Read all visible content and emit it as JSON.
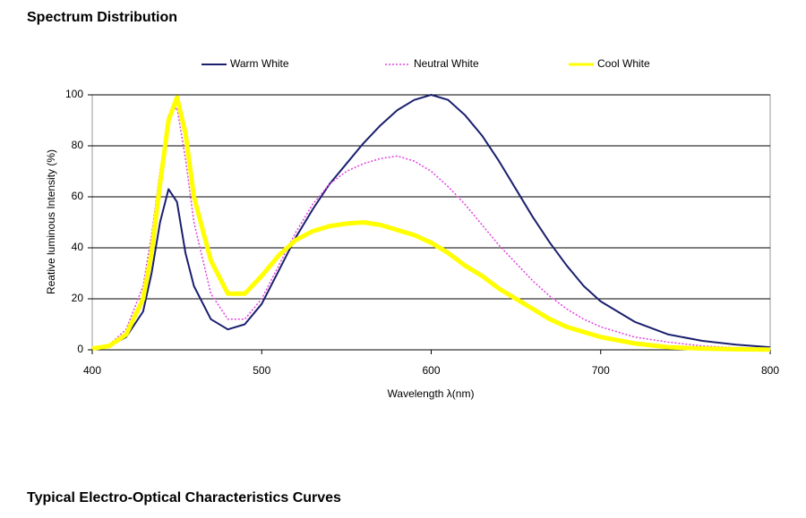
{
  "header": {
    "title": "Spectrum Distribution"
  },
  "chart_data": {
    "type": "line",
    "x_label": "Wavelength  λ(nm)",
    "y_label": "Reative luminous Intensity  (%)",
    "x": [
      400,
      410,
      420,
      430,
      435,
      440,
      445,
      450,
      455,
      460,
      470,
      480,
      490,
      500,
      510,
      520,
      530,
      540,
      550,
      560,
      570,
      580,
      590,
      600,
      610,
      620,
      630,
      640,
      650,
      660,
      670,
      680,
      690,
      700,
      720,
      740,
      760,
      780,
      800
    ],
    "series": [
      {
        "name": "Warm White",
        "color": "#1a1f6e",
        "line_style": "solid",
        "width": 2,
        "values": [
          0.5,
          1.5,
          5,
          15,
          30,
          50,
          63,
          58,
          38,
          25,
          12,
          8,
          10,
          18,
          31,
          44,
          55,
          65,
          73,
          81,
          88,
          94,
          98,
          100,
          98,
          92,
          84,
          74,
          63,
          52,
          42,
          33,
          25,
          19,
          11,
          6,
          3.5,
          2,
          1
        ]
      },
      {
        "name": "Neutral White",
        "color": "#e040e0",
        "line_style": "dotted",
        "width": 1.5,
        "values": [
          0.5,
          2,
          8,
          25,
          45,
          70,
          92,
          95,
          75,
          50,
          22,
          12,
          12,
          20,
          33,
          46,
          57,
          65,
          70,
          73,
          75,
          76,
          74,
          70,
          64,
          57,
          49,
          41,
          34,
          27,
          21,
          16,
          12,
          9,
          5,
          3,
          1.5,
          0.8,
          0.5
        ]
      },
      {
        "name": "Cool White",
        "color": "#ffff00",
        "line_style": "solid",
        "width": 5,
        "values": [
          0.5,
          1.5,
          6,
          20,
          38,
          65,
          90,
          99,
          85,
          60,
          35,
          22,
          22,
          29,
          37,
          43,
          46.5,
          48.5,
          49.5,
          50,
          49,
          47,
          45,
          42,
          38,
          33,
          29,
          24,
          20,
          16,
          12,
          9,
          7,
          5,
          2.5,
          1,
          0.5,
          0.2,
          0.1
        ]
      }
    ],
    "xlim": [
      400,
      800
    ],
    "xticks": [
      400,
      500,
      600,
      700,
      800
    ],
    "ylim": [
      0,
      100
    ],
    "yticks": [
      0,
      20,
      40,
      60,
      80,
      100
    ],
    "grid": true,
    "legend": "top"
  },
  "footer": {
    "title": "Typical Electro-Optical Characteristics Curves"
  }
}
